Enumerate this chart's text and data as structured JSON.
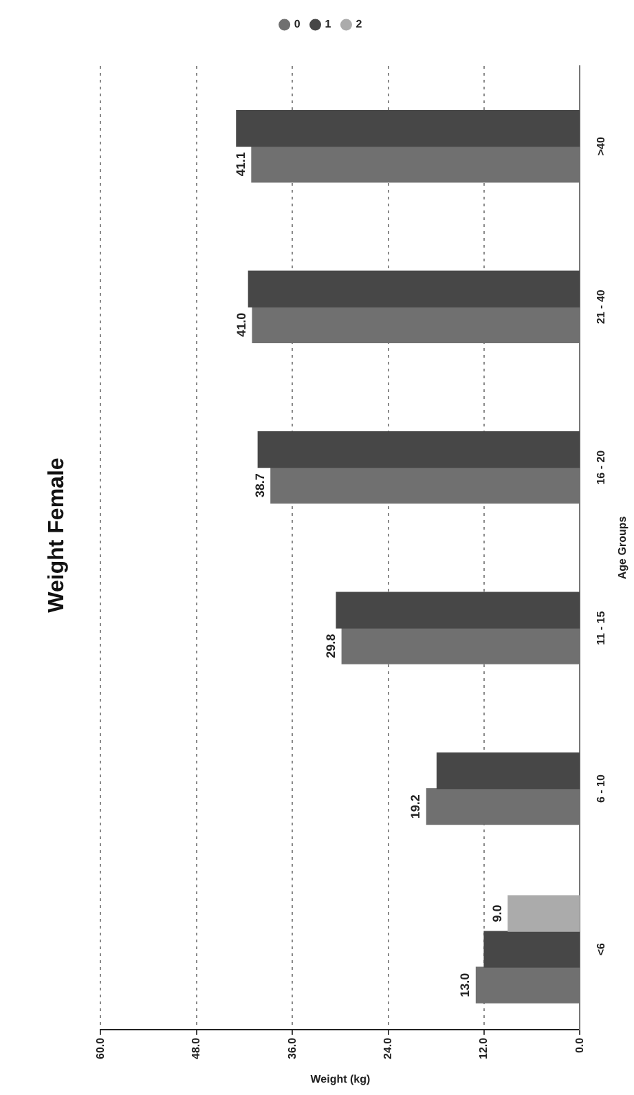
{
  "chart_data": {
    "type": "bar",
    "orientation": "horizontal",
    "title": "Weight Female",
    "xlabel": "Weight (kg)",
    "ylabel": "Age Groups",
    "categories": [
      ">40",
      "21 - 40",
      "16 - 20",
      "11 - 15",
      "6 - 10",
      "<6"
    ],
    "series": [
      {
        "name": "0",
        "color": "#707070",
        "values": [
          41.1,
          41.0,
          38.7,
          29.8,
          19.2,
          13.0
        ],
        "value_labels": [
          "41.1",
          "41.0",
          "38.7",
          "29.8",
          "19.2",
          "13.0"
        ]
      },
      {
        "name": "1",
        "color": "#474747",
        "values": [
          43.0,
          41.5,
          40.3,
          30.5,
          17.9,
          12.0
        ]
      },
      {
        "name": "2",
        "color": "#ababab",
        "values": [
          null,
          null,
          null,
          null,
          null,
          9.0
        ],
        "value_labels": [
          null,
          null,
          null,
          null,
          null,
          "9.0"
        ]
      }
    ],
    "xlim": [
      60,
      0
    ],
    "xticks": [
      {
        "value": 0,
        "label": "0.0"
      },
      {
        "value": 12,
        "label": "12.0"
      },
      {
        "value": 24,
        "label": "24.0"
      },
      {
        "value": 36,
        "label": "36.0"
      },
      {
        "value": 48,
        "label": "48.0"
      },
      {
        "value": 60,
        "label": "60.0"
      }
    ],
    "grid": "x",
    "legend": "top"
  }
}
